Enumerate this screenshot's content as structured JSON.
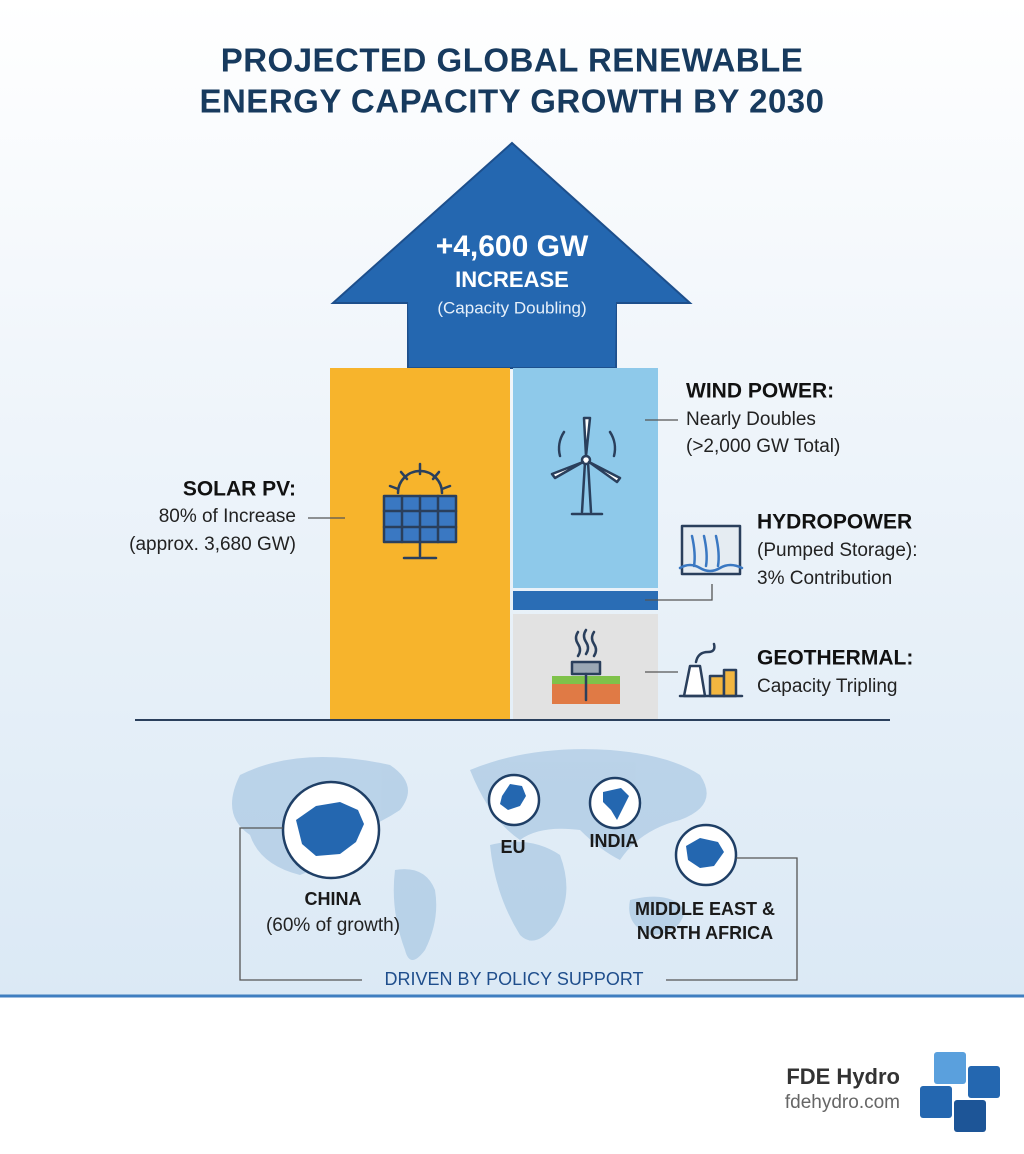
{
  "title": [
    "PROJECTED GLOBAL RENEWABLE",
    "ENERGY CAPACITY GROWTH BY 2030"
  ],
  "arrow": {
    "value": "+4,600 GW",
    "label": "INCREASE",
    "note": "(Capacity Doubling)"
  },
  "segments": [
    {
      "name": "SOLAR PV:",
      "lines": [
        "80% of Increase",
        "(approx. 3,680 GW)"
      ]
    },
    {
      "name": "WIND POWER:",
      "lines": [
        "Nearly Doubles",
        "(>2,000 GW Total)"
      ]
    },
    {
      "name": "HYDROPOWER",
      "lines": [
        "(Pumped Storage):",
        "3% Contribution"
      ]
    },
    {
      "name": "GEOTHERMAL:",
      "lines": [
        "Capacity Tripling"
      ]
    }
  ],
  "regions": [
    {
      "name": [
        "CHINA"
      ],
      "note": "(60% of growth)"
    },
    {
      "name": [
        "EU"
      ]
    },
    {
      "name": [
        "INDIA"
      ]
    },
    {
      "name": [
        "MIDDLE EAST &",
        "NORTH AFRICA"
      ]
    }
  ],
  "footer_label": "DRIVEN BY POLICY SUPPORT",
  "brand": {
    "name": "FDE Hydro",
    "url": "fdehydro.com"
  }
}
